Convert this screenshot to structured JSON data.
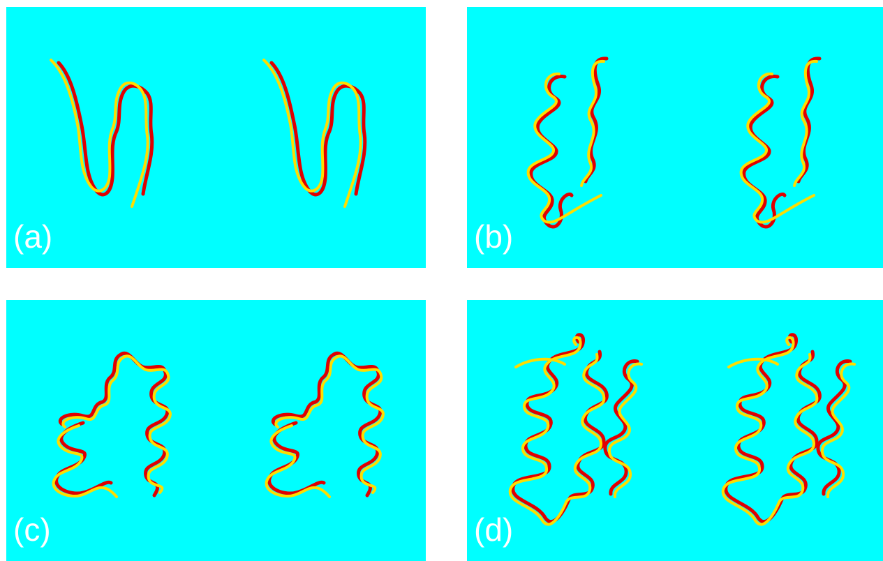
{
  "colors": {
    "background": "#00ffff",
    "page": "#ffffff",
    "structure_a": "#e00000",
    "structure_b": "#ffdd00",
    "label": "#ffffff"
  },
  "panels": [
    {
      "id": "a",
      "label": "(a)",
      "content": "stereo-pair-superposition"
    },
    {
      "id": "b",
      "label": "(b)",
      "content": "stereo-pair-superposition"
    },
    {
      "id": "c",
      "label": "(c)",
      "content": "stereo-pair-superposition"
    },
    {
      "id": "d",
      "label": "(d)",
      "content": "stereo-pair-superposition"
    }
  ]
}
